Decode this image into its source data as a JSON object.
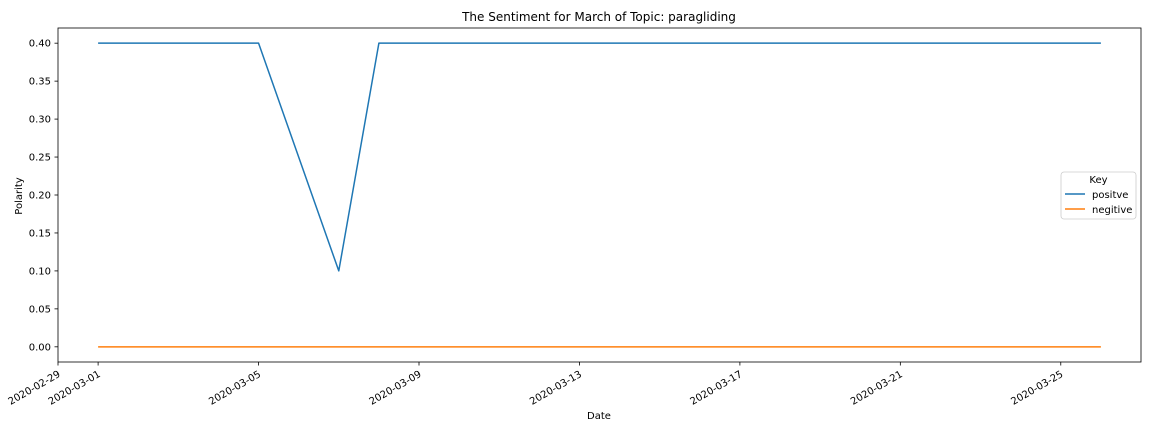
{
  "chart_data": {
    "type": "line",
    "title": "The Sentiment for March of Topic: paragliding",
    "xlabel": "Date",
    "ylabel": "Polarity",
    "x_tick_labels": [
      "2020-02-29",
      "2020-03-01",
      "2020-03-05",
      "2020-03-09",
      "2020-03-13",
      "2020-03-17",
      "2020-03-21",
      "2020-03-25"
    ],
    "y_tick_labels": [
      "0.00",
      "0.05",
      "0.10",
      "0.15",
      "0.20",
      "0.25",
      "0.30",
      "0.35",
      "0.40"
    ],
    "xlim": [
      "2020-02-29",
      "2020-03-27"
    ],
    "ylim": [
      -0.02,
      0.42
    ],
    "grid": false,
    "legend": {
      "title": "Key",
      "placement": "center-right"
    },
    "series": [
      {
        "name": "positve",
        "color": "#1f77b4",
        "x": [
          "2020-03-01",
          "2020-03-05",
          "2020-03-07",
          "2020-03-08",
          "2020-03-26"
        ],
        "y": [
          0.4,
          0.4,
          0.1,
          0.4,
          0.4
        ]
      },
      {
        "name": "negitive",
        "color": "#ff7f0e",
        "x": [
          "2020-03-01",
          "2020-03-26"
        ],
        "y": [
          0.0,
          0.0
        ]
      }
    ]
  }
}
